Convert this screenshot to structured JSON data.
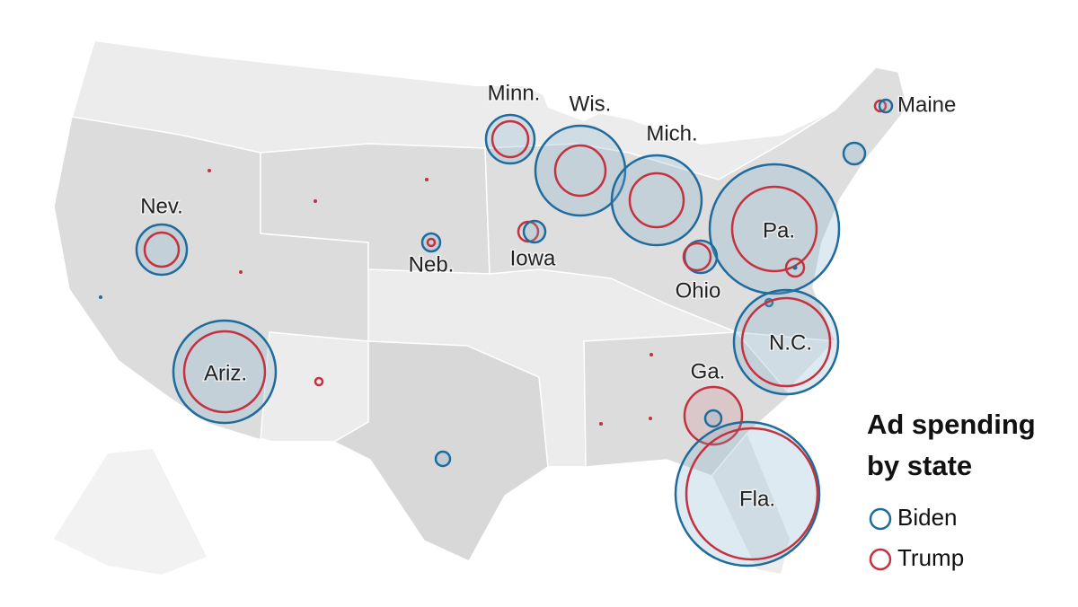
{
  "labels": [
    "Minn.",
    "Wis.",
    "Mich.",
    "Pa.",
    "Maine",
    "Nev.",
    "Neb.",
    "Iowa",
    "Ohio",
    "N.C.",
    "Ariz.",
    "Ga.",
    "Fla."
  ],
  "legend": {
    "title": [
      "Ad spending",
      "by state"
    ],
    "entries": [
      "Biden",
      "Trump"
    ]
  }
}
